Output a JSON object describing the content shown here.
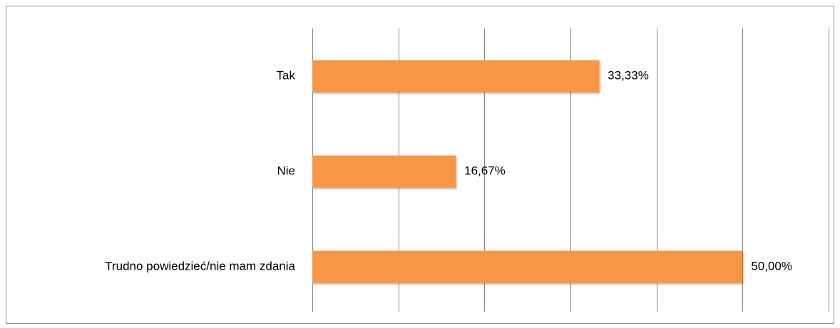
{
  "chart_data": {
    "type": "hbar",
    "categories": [
      "Tak",
      "Nie",
      "Trudno powiedzieć/nie mam zdania"
    ],
    "values": [
      33.33,
      16.67,
      50.0
    ],
    "value_labels": [
      "33,33%",
      "16,67%",
      "50,00%"
    ],
    "color": "#f79646",
    "xlim": [
      0,
      60
    ],
    "xticks": [
      0,
      10,
      20,
      30,
      40,
      50,
      60
    ],
    "grid": true
  }
}
